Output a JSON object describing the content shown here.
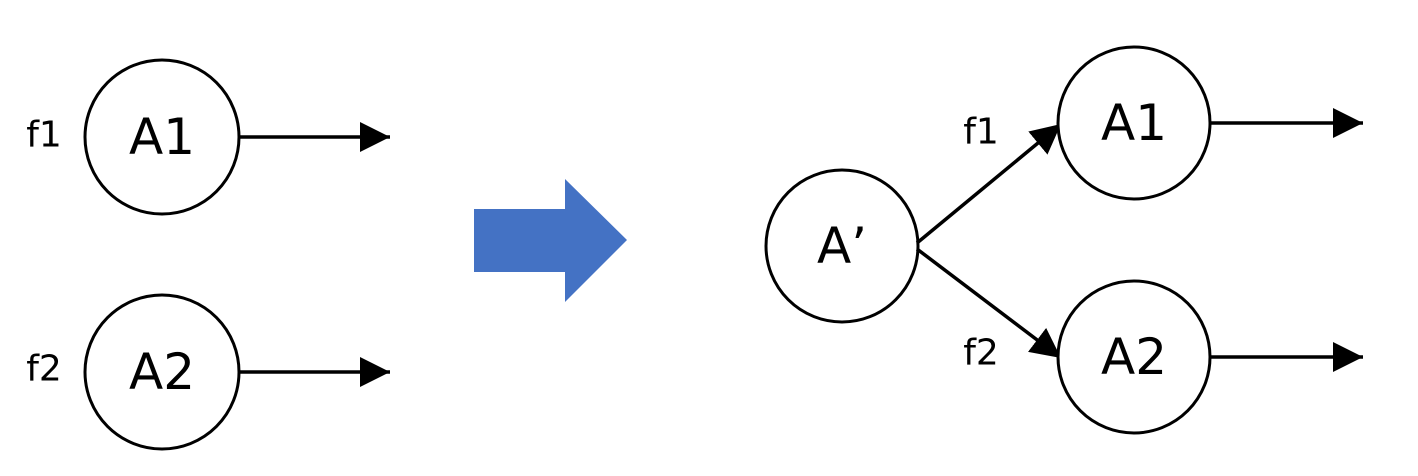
{
  "before": {
    "node_a1": "A1",
    "node_a2": "A2",
    "label_f1": "f1",
    "label_f2": "f2"
  },
  "after": {
    "node_a_prime": "A’",
    "node_a1": "A1",
    "node_a2": "A2",
    "label_f1": "f1",
    "label_f2": "f2"
  },
  "colors": {
    "transform_arrow": "#4472C4",
    "stroke": "#000000"
  }
}
